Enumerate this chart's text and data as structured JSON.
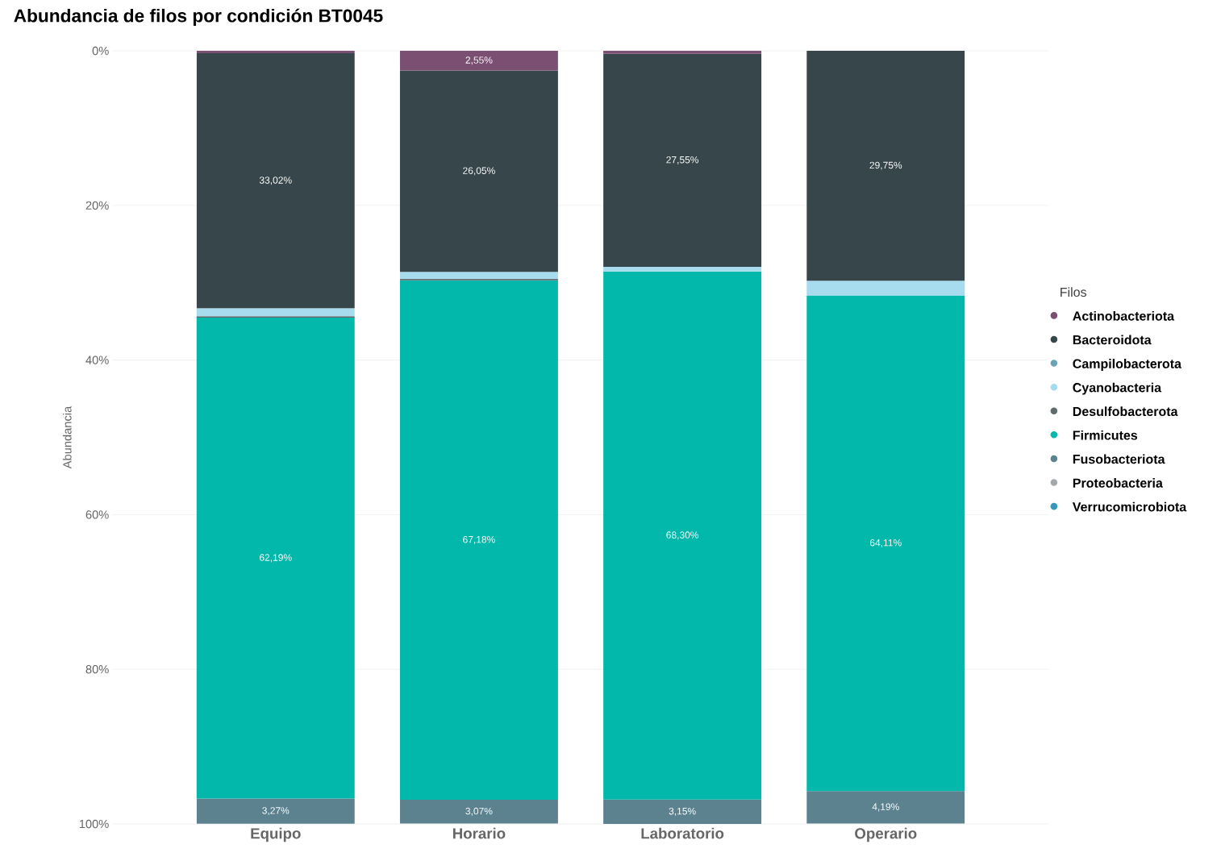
{
  "chart_data": {
    "type": "bar",
    "stacked": true,
    "title": "Abundancia de filos por condición BT0045",
    "ylabel": "Abundancia",
    "legend_title": "Filos",
    "legend": "right",
    "grid": "y",
    "categories": [
      "Equipo",
      "Horario",
      "Laboratorio",
      "Operario"
    ],
    "ylim": [
      100,
      0
    ],
    "yticks": [
      {
        "value": 0,
        "label": "0%"
      },
      {
        "value": 20,
        "label": "20%"
      },
      {
        "value": 40,
        "label": "40%"
      },
      {
        "value": 60,
        "label": "60%"
      },
      {
        "value": 80,
        "label": "80%"
      },
      {
        "value": 100,
        "label": "100%"
      }
    ],
    "series": [
      {
        "name": "Actinobacteriota",
        "color": "#7b4f72",
        "values": [
          0.3,
          2.55,
          0.4,
          0
        ],
        "value_labels": [
          null,
          "2,55%",
          null,
          null
        ]
      },
      {
        "name": "Bacteroidota",
        "color": "#37464a",
        "values": [
          33.02,
          26.05,
          27.55,
          29.75
        ],
        "value_labels": [
          "33,02%",
          "26,05%",
          "27,55%",
          "29,75%"
        ]
      },
      {
        "name": "Campilobacterota",
        "color": "#6aa3b5",
        "values": [
          0,
          0,
          0,
          0
        ]
      },
      {
        "name": "Cyanobacteria",
        "color": "#a6dcee",
        "values": [
          1.0,
          0.9,
          0.6,
          1.9
        ]
      },
      {
        "name": "Desulfobacterota",
        "color": "#5f6b6d",
        "values": [
          0.2,
          0.2,
          0,
          0
        ]
      },
      {
        "name": "Firmicutes",
        "color": "#01b8aa",
        "values": [
          62.19,
          67.18,
          68.3,
          64.11
        ],
        "value_labels": [
          "62,19%",
          "67,18%",
          "68,30%",
          "64,11%"
        ]
      },
      {
        "name": "Fusobacteriota",
        "color": "#5c8290",
        "values": [
          3.27,
          3.07,
          3.15,
          4.19
        ],
        "value_labels": [
          "3,27%",
          "3,07%",
          "3,15%",
          "4,19%"
        ]
      },
      {
        "name": "Proteobacteria",
        "color": "#a3a8aa",
        "values": [
          0,
          0,
          0,
          0
        ]
      },
      {
        "name": "Verrucomicrobiota",
        "color": "#3598b8",
        "values": [
          0,
          0,
          0,
          0
        ]
      }
    ]
  }
}
